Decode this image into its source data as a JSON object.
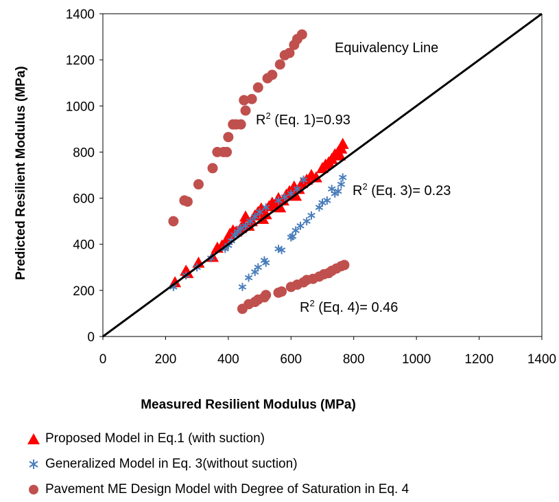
{
  "chart_data": {
    "type": "scatter",
    "xlabel": "Measured Resilient Modulus (MPa)",
    "ylabel": "Predicted Resilient Modulus (MPa)",
    "xlim": [
      0,
      1400
    ],
    "ylim": [
      0,
      1400
    ],
    "xticks": [
      "0",
      "200",
      "400",
      "600",
      "800",
      "1000",
      "1200",
      "1400"
    ],
    "yticks": [
      "0",
      "200",
      "400",
      "600",
      "800",
      "1000",
      "1200",
      "1400"
    ],
    "grid": false,
    "legend_position": "bottom",
    "equivalency_line": {
      "label": "Equivalency Line",
      "points": [
        [
          0,
          0
        ],
        [
          1400,
          1400
        ]
      ]
    },
    "annotations": [
      {
        "id": "eq1",
        "base": "R",
        "sup": "2",
        "rest": " (Eq. 1)=0.93",
        "x": 1,
        "y": 1
      },
      {
        "id": "eq3",
        "base": "R",
        "sup": "2",
        "rest": " (Eq. 3)= 0.23",
        "x": 1,
        "y": 1
      },
      {
        "id": "eq4",
        "base": "R",
        "sup": "2",
        "rest": " (Eq. 4)= 0.46",
        "x": 1,
        "y": 1
      }
    ],
    "series": [
      {
        "name": "Proposed Model in Eq.1 (with suction)",
        "marker": "triangle",
        "color": "#ff0000",
        "points": [
          [
            230,
            235
          ],
          [
            265,
            285
          ],
          [
            270,
            275
          ],
          [
            305,
            320
          ],
          [
            350,
            345
          ],
          [
            365,
            385
          ],
          [
            380,
            395
          ],
          [
            395,
            420
          ],
          [
            405,
            445
          ],
          [
            415,
            460
          ],
          [
            425,
            455
          ],
          [
            440,
            470
          ],
          [
            450,
            490
          ],
          [
            455,
            520
          ],
          [
            465,
            480
          ],
          [
            475,
            500
          ],
          [
            485,
            525
          ],
          [
            495,
            540
          ],
          [
            505,
            555
          ],
          [
            510,
            510
          ],
          [
            520,
            530
          ],
          [
            530,
            565
          ],
          [
            540,
            580
          ],
          [
            550,
            575
          ],
          [
            560,
            600
          ],
          [
            565,
            560
          ],
          [
            575,
            590
          ],
          [
            585,
            615
          ],
          [
            595,
            630
          ],
          [
            605,
            620
          ],
          [
            610,
            650
          ],
          [
            615,
            610
          ],
          [
            625,
            640
          ],
          [
            635,
            665
          ],
          [
            650,
            680
          ],
          [
            665,
            700
          ],
          [
            680,
            690
          ],
          [
            700,
            730
          ],
          [
            710,
            745
          ],
          [
            720,
            755
          ],
          [
            730,
            770
          ],
          [
            740,
            790
          ],
          [
            750,
            800
          ],
          [
            760,
            815
          ],
          [
            765,
            835
          ],
          [
            755,
            785
          ]
        ]
      },
      {
        "name": "Generalized Model in Eq. 3(without suction)",
        "marker": "star",
        "color": "#4a7ebb",
        "points": [
          [
            225,
            215
          ],
          [
            265,
            265
          ],
          [
            300,
            300
          ],
          [
            345,
            340
          ],
          [
            390,
            380
          ],
          [
            400,
            395
          ],
          [
            410,
            415
          ],
          [
            420,
            440
          ],
          [
            430,
            455
          ],
          [
            440,
            470
          ],
          [
            455,
            480
          ],
          [
            470,
            500
          ],
          [
            485,
            520
          ],
          [
            500,
            540
          ],
          [
            520,
            560
          ],
          [
            560,
            590
          ],
          [
            580,
            605
          ],
          [
            600,
            620
          ],
          [
            620,
            640
          ],
          [
            640,
            680
          ],
          [
            445,
            215
          ],
          [
            465,
            255
          ],
          [
            485,
            280
          ],
          [
            495,
            300
          ],
          [
            515,
            330
          ],
          [
            520,
            320
          ],
          [
            560,
            380
          ],
          [
            570,
            375
          ],
          [
            600,
            430
          ],
          [
            605,
            435
          ],
          [
            615,
            460
          ],
          [
            630,
            480
          ],
          [
            650,
            500
          ],
          [
            665,
            525
          ],
          [
            690,
            560
          ],
          [
            700,
            580
          ],
          [
            715,
            590
          ],
          [
            730,
            640
          ],
          [
            740,
            620
          ],
          [
            750,
            630
          ],
          [
            760,
            660
          ],
          [
            765,
            690
          ]
        ]
      },
      {
        "name": "Pavement ME Design Model with Degree of Saturation in Eq. 4",
        "marker": "circle",
        "color": "#c0504d",
        "points": [
          [
            225,
            500
          ],
          [
            260,
            590
          ],
          [
            270,
            585
          ],
          [
            305,
            660
          ],
          [
            350,
            730
          ],
          [
            365,
            800
          ],
          [
            385,
            800
          ],
          [
            395,
            800
          ],
          [
            400,
            865
          ],
          [
            415,
            920
          ],
          [
            425,
            920
          ],
          [
            440,
            920
          ],
          [
            450,
            1025
          ],
          [
            455,
            980
          ],
          [
            475,
            1030
          ],
          [
            495,
            1080
          ],
          [
            525,
            1120
          ],
          [
            540,
            1135
          ],
          [
            565,
            1180
          ],
          [
            580,
            1220
          ],
          [
            595,
            1230
          ],
          [
            610,
            1265
          ],
          [
            620,
            1290
          ],
          [
            635,
            1310
          ],
          [
            445,
            120
          ],
          [
            465,
            140
          ],
          [
            485,
            150
          ],
          [
            495,
            160
          ],
          [
            515,
            170
          ],
          [
            520,
            180
          ],
          [
            560,
            190
          ],
          [
            570,
            195
          ],
          [
            600,
            215
          ],
          [
            620,
            225
          ],
          [
            640,
            235
          ],
          [
            650,
            245
          ],
          [
            670,
            250
          ],
          [
            690,
            260
          ],
          [
            705,
            270
          ],
          [
            720,
            275
          ],
          [
            730,
            285
          ],
          [
            745,
            295
          ],
          [
            760,
            305
          ],
          [
            770,
            310
          ]
        ]
      }
    ]
  }
}
